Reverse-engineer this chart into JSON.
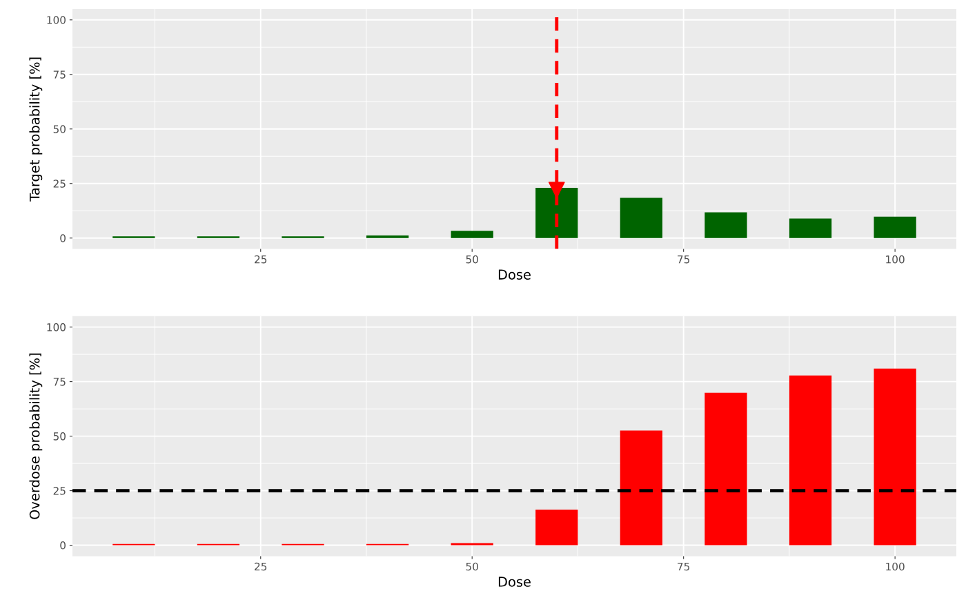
{
  "chart_data": [
    {
      "type": "bar",
      "xlabel": "Dose",
      "ylabel": "Target probability [%]",
      "x": [
        10,
        20,
        30,
        40,
        50,
        60,
        70,
        80,
        90,
        100
      ],
      "series": [
        {
          "color": "#006400",
          "values": [
            0.8,
            0.8,
            0.8,
            1.2,
            3.3,
            23,
            18.4,
            11.8,
            8.9,
            9.8
          ]
        },
        {
          "type": "scatter",
          "color": "#ff0000",
          "x": [
            60
          ],
          "values": [
            22
          ],
          "marker": "triangle"
        }
      ],
      "xlim": [
        2.75,
        107.25
      ],
      "xticks": [
        25,
        50,
        75,
        100
      ],
      "ylim": [
        -5,
        105
      ],
      "yticks": [
        0,
        25,
        50,
        75,
        100
      ],
      "grid": true,
      "ref_lines": [
        {
          "axis": "x",
          "value": 60,
          "color": "#ff0000",
          "line_style": "dashed"
        }
      ]
    },
    {
      "type": "bar",
      "xlabel": "Dose",
      "ylabel": "Overdose probability [%]",
      "x": [
        10,
        20,
        30,
        40,
        50,
        60,
        70,
        80,
        90,
        100
      ],
      "series": [
        {
          "color": "#ff0000",
          "values": [
            0.6,
            0.6,
            0.6,
            0.6,
            1,
            16.3,
            52.6,
            69.9,
            77.8,
            81
          ]
        }
      ],
      "xlim": [
        2.75,
        107.25
      ],
      "xticks": [
        25,
        50,
        75,
        100
      ],
      "ylim": [
        -5,
        105
      ],
      "yticks": [
        0,
        25,
        50,
        75,
        100
      ],
      "grid": true,
      "ref_lines": [
        {
          "axis": "y",
          "value": 25,
          "color": "#000000",
          "line_style": "dashed"
        }
      ]
    }
  ]
}
